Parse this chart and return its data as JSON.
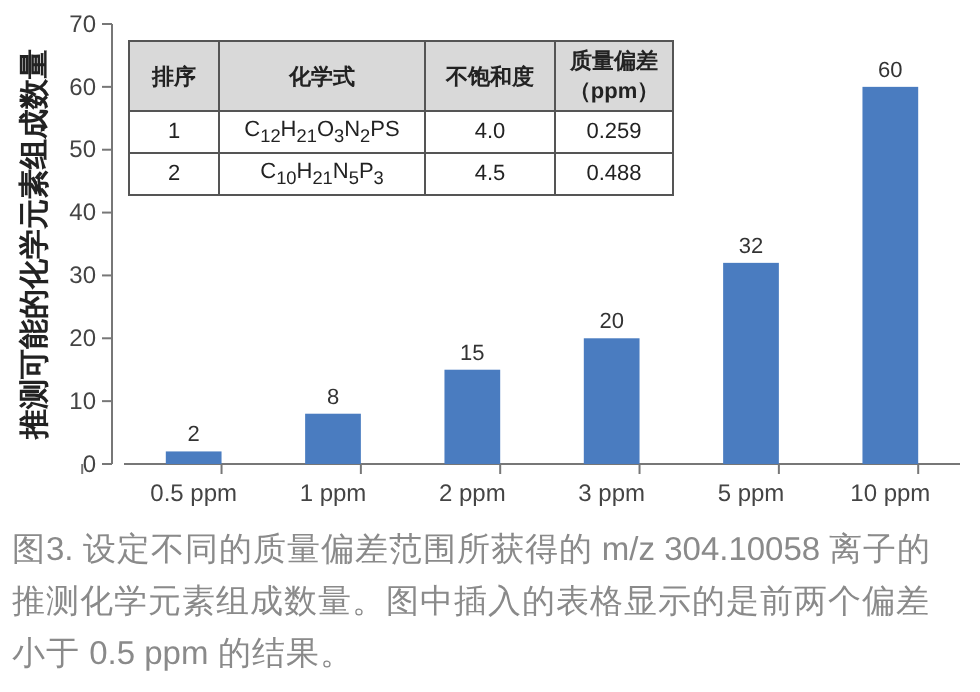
{
  "chart_data": {
    "type": "bar",
    "ylabel": "推测可能的化学元素组成数量",
    "categories": [
      "0.5 ppm",
      "1 ppm",
      "2 ppm",
      "3 ppm",
      "5 ppm",
      "10 ppm"
    ],
    "values": [
      2,
      8,
      15,
      20,
      32,
      60
    ],
    "color": "#4a7cc0",
    "ylim": [
      0,
      70
    ],
    "yticks": [
      0,
      10,
      20,
      30,
      40,
      50,
      60,
      70
    ],
    "data_labels": true,
    "annotations": [
      "排序",
      "化学式",
      "不饱和度",
      "质量偏差（ppm）",
      "1",
      "C$_{12}$H$_{21}$O$_{3}$N$_{2}$PS",
      "4.0",
      "0.259",
      "2",
      "C$_{10}$H$_{21}$N$_{5}$P$_{3}$",
      "4.5",
      "0.488",
      "图3. 设定不同的质量偏差范围所获得的 m/z 304.10058 离子的推测化学元素组成数量。图中插入的表格显示的是前两个偏差小于 0.5 ppm 的结果。"
    ]
  }
}
